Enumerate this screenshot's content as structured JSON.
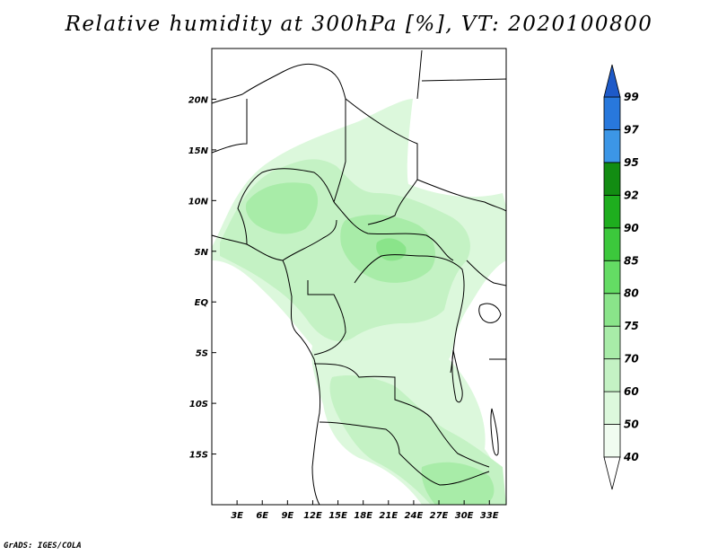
{
  "title": "Relative humidity at 300hPa [%], VT: 2020100800",
  "footer": "GrADS: IGES/COLA",
  "map": {
    "projection": "latlon",
    "lon_range": [
      0,
      35
    ],
    "lat_range": [
      -20,
      25
    ],
    "x_ticks": [
      "3E",
      "6E",
      "9E",
      "12E",
      "15E",
      "18E",
      "21E",
      "24E",
      "27E",
      "30E",
      "33E"
    ],
    "x_tick_values": [
      3,
      6,
      9,
      12,
      15,
      18,
      21,
      24,
      27,
      30,
      33
    ],
    "y_ticks": [
      "20N",
      "15N",
      "10N",
      "5N",
      "EQ",
      "5S",
      "10S",
      "15S"
    ],
    "y_tick_values": [
      20,
      15,
      10,
      5,
      0,
      -5,
      -10,
      -15
    ]
  },
  "colorbar": {
    "labels": [
      "40",
      "50",
      "60",
      "70",
      "75",
      "80",
      "85",
      "90",
      "92",
      "95",
      "97",
      "99"
    ],
    "colors": [
      "#f0fcf0",
      "#dcf8dc",
      "#c4f2c4",
      "#a8eca8",
      "#8ae48a",
      "#64dc64",
      "#3cc83c",
      "#1eae1e",
      "#128c12",
      "#3c96e6",
      "#2878dc",
      "#1e5ac8"
    ]
  }
}
